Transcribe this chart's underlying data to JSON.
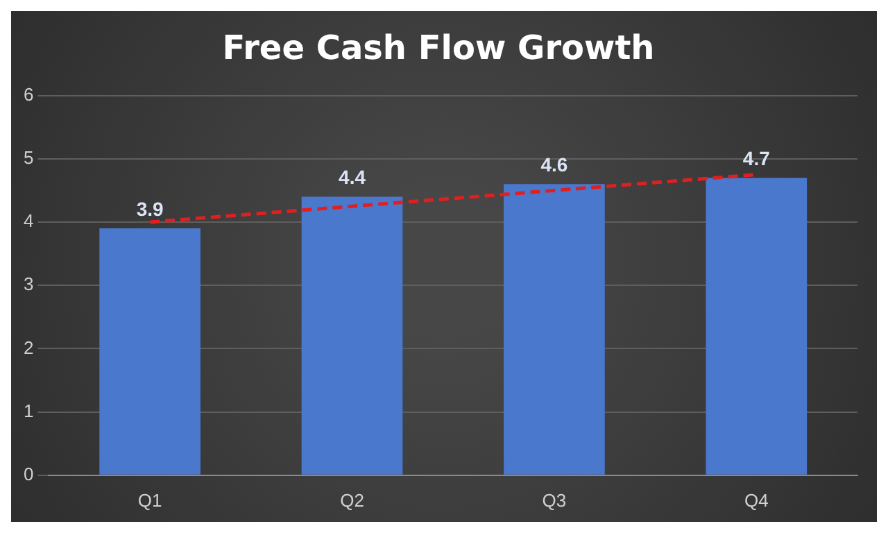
{
  "chart_data": {
    "type": "bar",
    "title": "Free Cash Flow Growth",
    "categories": [
      "Q1",
      "Q2",
      "Q3",
      "Q4"
    ],
    "series": [
      {
        "color": "#4a78cc",
        "values": [
          3.9,
          4.4,
          4.6,
          4.7
        ],
        "value_labels": [
          "3.9",
          "4.4",
          "4.6",
          "4.7"
        ]
      },
      {
        "type": "line",
        "color": "#e02020",
        "values": [
          4.0,
          4.25,
          4.5,
          4.75
        ],
        "line_style": "dashed",
        "marker": "none"
      }
    ],
    "ylim": [
      0,
      6
    ],
    "yticks": [
      0,
      1,
      2,
      3,
      4,
      5,
      6
    ],
    "grid": "y",
    "legend": false
  }
}
